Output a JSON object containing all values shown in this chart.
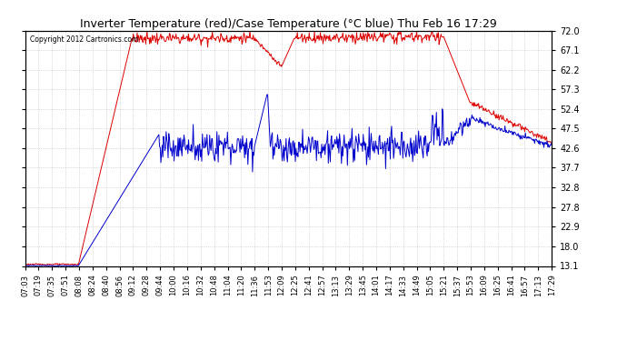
{
  "title": "Inverter Temperature (red)/Case Temperature (°C blue) Thu Feb 16 17:29",
  "copyright": "Copyright 2012 Cartronics.com",
  "yticks": [
    13.1,
    18.0,
    22.9,
    27.8,
    32.8,
    37.7,
    42.6,
    47.5,
    52.4,
    57.3,
    62.2,
    67.1,
    72.0
  ],
  "ylim": [
    13.1,
    72.0
  ],
  "xlabels": [
    "07:03",
    "07:19",
    "07:35",
    "07:51",
    "08:08",
    "08:24",
    "08:40",
    "08:56",
    "09:12",
    "09:28",
    "09:44",
    "10:00",
    "10:16",
    "10:32",
    "10:48",
    "11:04",
    "11:20",
    "11:36",
    "11:53",
    "12:09",
    "12:25",
    "12:41",
    "12:57",
    "13:13",
    "13:29",
    "13:45",
    "14:01",
    "14:17",
    "14:33",
    "14:49",
    "15:05",
    "15:21",
    "15:37",
    "15:53",
    "16:09",
    "16:25",
    "16:41",
    "16:57",
    "17:13",
    "17:29"
  ],
  "bg_color": "#ffffff",
  "grid_color": "#bbbbbb",
  "red_color": "#dd0000",
  "blue_color": "#0000cc",
  "figsize": [
    6.9,
    3.75
  ],
  "dpi": 100
}
